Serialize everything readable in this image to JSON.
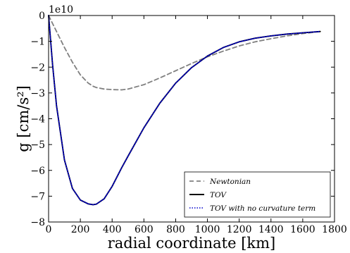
{
  "chart_data": {
    "type": "line",
    "title": "",
    "xlabel": "radial coordinate [km]",
    "ylabel": "g [cm/s²]",
    "offset_text": "1e10",
    "xlim": [
      0,
      1800
    ],
    "ylim": [
      -8,
      0
    ],
    "x_ticks": [
      0,
      200,
      400,
      600,
      800,
      1000,
      1200,
      1400,
      1600,
      1800
    ],
    "x_tick_labels": [
      "0",
      "200",
      "400",
      "600",
      "800",
      "1000",
      "1200",
      "1400",
      "1600",
      "1800"
    ],
    "y_ticks": [
      0,
      -1,
      -2,
      -3,
      -4,
      -5,
      -6,
      -7,
      -8
    ],
    "y_tick_labels": [
      "0",
      "−1",
      "−2",
      "−3",
      "−4",
      "−5",
      "−6",
      "−7",
      "−8"
    ],
    "grid": false,
    "legend_position": "lower-right",
    "x": [
      0,
      25,
      50,
      100,
      150,
      200,
      250,
      280,
      300,
      350,
      400,
      460,
      500,
      600,
      700,
      800,
      900,
      1000,
      1100,
      1200,
      1300,
      1400,
      1500,
      1600,
      1710
    ],
    "series": [
      {
        "name": "Newtonian",
        "color": "#808080",
        "style": "dashed",
        "values": [
          0,
          -0.31,
          -0.62,
          -1.24,
          -1.81,
          -2.3,
          -2.62,
          -2.74,
          -2.79,
          -2.85,
          -2.87,
          -2.88,
          -2.85,
          -2.68,
          -2.42,
          -2.14,
          -1.86,
          -1.6,
          -1.38,
          -1.18,
          -1.02,
          -0.9,
          -0.79,
          -0.7,
          -0.62
        ]
      },
      {
        "name": "TOV",
        "color": "#000000",
        "style": "solid",
        "values": [
          0,
          -1.9,
          -3.5,
          -5.6,
          -6.7,
          -7.15,
          -7.3,
          -7.33,
          -7.31,
          -7.1,
          -6.62,
          -5.9,
          -5.45,
          -4.35,
          -3.4,
          -2.62,
          -2.02,
          -1.57,
          -1.24,
          -1.02,
          -0.88,
          -0.79,
          -0.72,
          -0.67,
          -0.62
        ]
      },
      {
        "name": "TOV with no curvature term",
        "color": "#0000cc",
        "style": "dotted",
        "values": [
          0,
          -1.9,
          -3.5,
          -5.6,
          -6.7,
          -7.15,
          -7.3,
          -7.33,
          -7.31,
          -7.1,
          -6.62,
          -5.9,
          -5.45,
          -4.35,
          -3.4,
          -2.62,
          -2.02,
          -1.57,
          -1.24,
          -1.02,
          -0.88,
          -0.79,
          -0.72,
          -0.67,
          -0.62
        ]
      }
    ]
  }
}
